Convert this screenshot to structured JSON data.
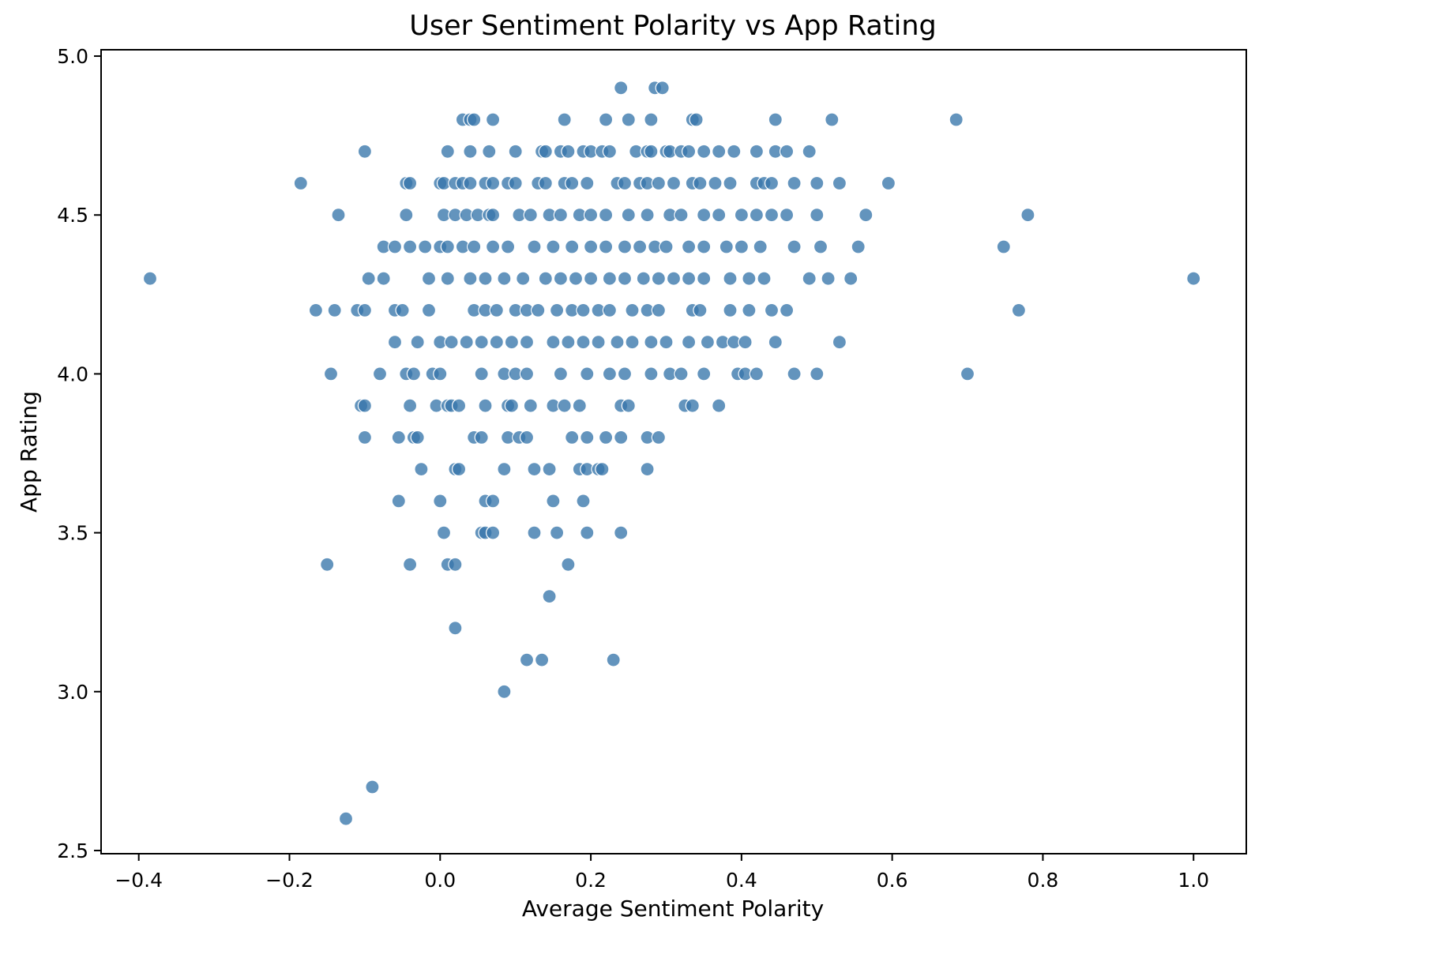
{
  "chart_data": {
    "type": "scatter",
    "title": "User Sentiment Polarity vs App Rating",
    "xlabel": "Average Sentiment Polarity",
    "ylabel": "App Rating",
    "xlim": [
      -0.45,
      1.07
    ],
    "ylim": [
      2.49,
      5.02
    ],
    "xticks": [
      -0.4,
      -0.2,
      0.0,
      0.2,
      0.4,
      0.6,
      0.8,
      1.0
    ],
    "xtick_labels": [
      "−0.4",
      "−0.2",
      "0.0",
      "0.2",
      "0.4",
      "0.6",
      "0.8",
      "1.0"
    ],
    "yticks": [
      2.5,
      3.0,
      3.5,
      4.0,
      4.5,
      5.0
    ],
    "ytick_labels": [
      "2.5",
      "3.0",
      "3.5",
      "4.0",
      "4.5",
      "5.0"
    ],
    "grid": false,
    "legend": "none",
    "colors": {
      "point": "#3776ab",
      "point_edge": "#ffffff",
      "axis": "#000000"
    },
    "points": [
      [
        0.24,
        4.9
      ],
      [
        0.285,
        4.9
      ],
      [
        0.295,
        4.9
      ],
      [
        0.03,
        4.8
      ],
      [
        0.04,
        4.8
      ],
      [
        0.045,
        4.8
      ],
      [
        0.07,
        4.8
      ],
      [
        0.165,
        4.8
      ],
      [
        0.22,
        4.8
      ],
      [
        0.25,
        4.8
      ],
      [
        0.28,
        4.8
      ],
      [
        0.335,
        4.8
      ],
      [
        0.34,
        4.8
      ],
      [
        0.445,
        4.8
      ],
      [
        0.52,
        4.8
      ],
      [
        0.685,
        4.8
      ],
      [
        -0.1,
        4.7
      ],
      [
        0.01,
        4.7
      ],
      [
        0.04,
        4.7
      ],
      [
        0.065,
        4.7
      ],
      [
        0.1,
        4.7
      ],
      [
        0.135,
        4.7
      ],
      [
        0.14,
        4.7
      ],
      [
        0.16,
        4.7
      ],
      [
        0.17,
        4.7
      ],
      [
        0.19,
        4.7
      ],
      [
        0.2,
        4.7
      ],
      [
        0.215,
        4.7
      ],
      [
        0.225,
        4.7
      ],
      [
        0.26,
        4.7
      ],
      [
        0.275,
        4.7
      ],
      [
        0.28,
        4.7
      ],
      [
        0.3,
        4.7
      ],
      [
        0.305,
        4.7
      ],
      [
        0.32,
        4.7
      ],
      [
        0.33,
        4.7
      ],
      [
        0.35,
        4.7
      ],
      [
        0.37,
        4.7
      ],
      [
        0.39,
        4.7
      ],
      [
        0.42,
        4.7
      ],
      [
        0.445,
        4.7
      ],
      [
        0.46,
        4.7
      ],
      [
        0.49,
        4.7
      ],
      [
        -0.185,
        4.6
      ],
      [
        -0.045,
        4.6
      ],
      [
        -0.04,
        4.6
      ],
      [
        0.0,
        4.6
      ],
      [
        0.005,
        4.6
      ],
      [
        0.02,
        4.6
      ],
      [
        0.03,
        4.6
      ],
      [
        0.04,
        4.6
      ],
      [
        0.06,
        4.6
      ],
      [
        0.07,
        4.6
      ],
      [
        0.09,
        4.6
      ],
      [
        0.1,
        4.6
      ],
      [
        0.13,
        4.6
      ],
      [
        0.14,
        4.6
      ],
      [
        0.165,
        4.6
      ],
      [
        0.175,
        4.6
      ],
      [
        0.195,
        4.6
      ],
      [
        0.235,
        4.6
      ],
      [
        0.245,
        4.6
      ],
      [
        0.265,
        4.6
      ],
      [
        0.275,
        4.6
      ],
      [
        0.29,
        4.6
      ],
      [
        0.31,
        4.6
      ],
      [
        0.335,
        4.6
      ],
      [
        0.345,
        4.6
      ],
      [
        0.365,
        4.6
      ],
      [
        0.385,
        4.6
      ],
      [
        0.42,
        4.6
      ],
      [
        0.43,
        4.6
      ],
      [
        0.44,
        4.6
      ],
      [
        0.47,
        4.6
      ],
      [
        0.5,
        4.6
      ],
      [
        0.53,
        4.6
      ],
      [
        0.595,
        4.6
      ],
      [
        -0.135,
        4.5
      ],
      [
        -0.045,
        4.5
      ],
      [
        0.005,
        4.5
      ],
      [
        0.02,
        4.5
      ],
      [
        0.035,
        4.5
      ],
      [
        0.05,
        4.5
      ],
      [
        0.065,
        4.5
      ],
      [
        0.07,
        4.5
      ],
      [
        0.105,
        4.5
      ],
      [
        0.12,
        4.5
      ],
      [
        0.145,
        4.5
      ],
      [
        0.16,
        4.5
      ],
      [
        0.185,
        4.5
      ],
      [
        0.2,
        4.5
      ],
      [
        0.22,
        4.5
      ],
      [
        0.25,
        4.5
      ],
      [
        0.275,
        4.5
      ],
      [
        0.305,
        4.5
      ],
      [
        0.32,
        4.5
      ],
      [
        0.35,
        4.5
      ],
      [
        0.37,
        4.5
      ],
      [
        0.4,
        4.5
      ],
      [
        0.42,
        4.5
      ],
      [
        0.44,
        4.5
      ],
      [
        0.46,
        4.5
      ],
      [
        0.5,
        4.5
      ],
      [
        0.565,
        4.5
      ],
      [
        0.78,
        4.5
      ],
      [
        -0.075,
        4.4
      ],
      [
        -0.06,
        4.4
      ],
      [
        -0.04,
        4.4
      ],
      [
        -0.02,
        4.4
      ],
      [
        0.0,
        4.4
      ],
      [
        0.01,
        4.4
      ],
      [
        0.03,
        4.4
      ],
      [
        0.045,
        4.4
      ],
      [
        0.07,
        4.4
      ],
      [
        0.09,
        4.4
      ],
      [
        0.125,
        4.4
      ],
      [
        0.15,
        4.4
      ],
      [
        0.175,
        4.4
      ],
      [
        0.2,
        4.4
      ],
      [
        0.22,
        4.4
      ],
      [
        0.245,
        4.4
      ],
      [
        0.265,
        4.4
      ],
      [
        0.285,
        4.4
      ],
      [
        0.3,
        4.4
      ],
      [
        0.33,
        4.4
      ],
      [
        0.35,
        4.4
      ],
      [
        0.38,
        4.4
      ],
      [
        0.4,
        4.4
      ],
      [
        0.425,
        4.4
      ],
      [
        0.47,
        4.4
      ],
      [
        0.505,
        4.4
      ],
      [
        0.555,
        4.4
      ],
      [
        0.748,
        4.4
      ],
      [
        -0.385,
        4.3
      ],
      [
        -0.095,
        4.3
      ],
      [
        -0.075,
        4.3
      ],
      [
        -0.015,
        4.3
      ],
      [
        0.01,
        4.3
      ],
      [
        0.04,
        4.3
      ],
      [
        0.06,
        4.3
      ],
      [
        0.085,
        4.3
      ],
      [
        0.11,
        4.3
      ],
      [
        0.14,
        4.3
      ],
      [
        0.16,
        4.3
      ],
      [
        0.18,
        4.3
      ],
      [
        0.2,
        4.3
      ],
      [
        0.225,
        4.3
      ],
      [
        0.245,
        4.3
      ],
      [
        0.27,
        4.3
      ],
      [
        0.29,
        4.3
      ],
      [
        0.31,
        4.3
      ],
      [
        0.33,
        4.3
      ],
      [
        0.35,
        4.3
      ],
      [
        0.385,
        4.3
      ],
      [
        0.41,
        4.3
      ],
      [
        0.43,
        4.3
      ],
      [
        0.49,
        4.3
      ],
      [
        0.515,
        4.3
      ],
      [
        0.545,
        4.3
      ],
      [
        1.0,
        4.3
      ],
      [
        -0.165,
        4.2
      ],
      [
        -0.14,
        4.2
      ],
      [
        -0.11,
        4.2
      ],
      [
        -0.1,
        4.2
      ],
      [
        -0.06,
        4.2
      ],
      [
        -0.05,
        4.2
      ],
      [
        -0.015,
        4.2
      ],
      [
        0.045,
        4.2
      ],
      [
        0.06,
        4.2
      ],
      [
        0.075,
        4.2
      ],
      [
        0.1,
        4.2
      ],
      [
        0.115,
        4.2
      ],
      [
        0.13,
        4.2
      ],
      [
        0.155,
        4.2
      ],
      [
        0.175,
        4.2
      ],
      [
        0.19,
        4.2
      ],
      [
        0.21,
        4.2
      ],
      [
        0.225,
        4.2
      ],
      [
        0.255,
        4.2
      ],
      [
        0.275,
        4.2
      ],
      [
        0.29,
        4.2
      ],
      [
        0.335,
        4.2
      ],
      [
        0.345,
        4.2
      ],
      [
        0.385,
        4.2
      ],
      [
        0.41,
        4.2
      ],
      [
        0.44,
        4.2
      ],
      [
        0.46,
        4.2
      ],
      [
        0.768,
        4.2
      ],
      [
        -0.06,
        4.1
      ],
      [
        -0.03,
        4.1
      ],
      [
        0.0,
        4.1
      ],
      [
        0.015,
        4.1
      ],
      [
        0.035,
        4.1
      ],
      [
        0.055,
        4.1
      ],
      [
        0.075,
        4.1
      ],
      [
        0.095,
        4.1
      ],
      [
        0.115,
        4.1
      ],
      [
        0.15,
        4.1
      ],
      [
        0.17,
        4.1
      ],
      [
        0.19,
        4.1
      ],
      [
        0.21,
        4.1
      ],
      [
        0.235,
        4.1
      ],
      [
        0.255,
        4.1
      ],
      [
        0.28,
        4.1
      ],
      [
        0.3,
        4.1
      ],
      [
        0.33,
        4.1
      ],
      [
        0.355,
        4.1
      ],
      [
        0.375,
        4.1
      ],
      [
        0.39,
        4.1
      ],
      [
        0.405,
        4.1
      ],
      [
        0.445,
        4.1
      ],
      [
        0.53,
        4.1
      ],
      [
        -0.145,
        4.0
      ],
      [
        -0.08,
        4.0
      ],
      [
        -0.045,
        4.0
      ],
      [
        -0.035,
        4.0
      ],
      [
        -0.01,
        4.0
      ],
      [
        0.0,
        4.0
      ],
      [
        0.055,
        4.0
      ],
      [
        0.085,
        4.0
      ],
      [
        0.1,
        4.0
      ],
      [
        0.115,
        4.0
      ],
      [
        0.16,
        4.0
      ],
      [
        0.195,
        4.0
      ],
      [
        0.225,
        4.0
      ],
      [
        0.245,
        4.0
      ],
      [
        0.28,
        4.0
      ],
      [
        0.305,
        4.0
      ],
      [
        0.32,
        4.0
      ],
      [
        0.35,
        4.0
      ],
      [
        0.395,
        4.0
      ],
      [
        0.405,
        4.0
      ],
      [
        0.42,
        4.0
      ],
      [
        0.47,
        4.0
      ],
      [
        0.5,
        4.0
      ],
      [
        0.7,
        4.0
      ],
      [
        -0.105,
        3.9
      ],
      [
        -0.1,
        3.9
      ],
      [
        -0.04,
        3.9
      ],
      [
        -0.005,
        3.9
      ],
      [
        0.01,
        3.9
      ],
      [
        0.015,
        3.9
      ],
      [
        0.025,
        3.9
      ],
      [
        0.06,
        3.9
      ],
      [
        0.09,
        3.9
      ],
      [
        0.095,
        3.9
      ],
      [
        0.12,
        3.9
      ],
      [
        0.15,
        3.9
      ],
      [
        0.165,
        3.9
      ],
      [
        0.185,
        3.9
      ],
      [
        0.24,
        3.9
      ],
      [
        0.25,
        3.9
      ],
      [
        0.325,
        3.9
      ],
      [
        0.335,
        3.9
      ],
      [
        0.37,
        3.9
      ],
      [
        -0.1,
        3.8
      ],
      [
        -0.055,
        3.8
      ],
      [
        -0.035,
        3.8
      ],
      [
        -0.03,
        3.8
      ],
      [
        0.045,
        3.8
      ],
      [
        0.055,
        3.8
      ],
      [
        0.09,
        3.8
      ],
      [
        0.105,
        3.8
      ],
      [
        0.115,
        3.8
      ],
      [
        0.175,
        3.8
      ],
      [
        0.195,
        3.8
      ],
      [
        0.22,
        3.8
      ],
      [
        0.24,
        3.8
      ],
      [
        0.275,
        3.8
      ],
      [
        0.29,
        3.8
      ],
      [
        -0.025,
        3.7
      ],
      [
        0.02,
        3.7
      ],
      [
        0.025,
        3.7
      ],
      [
        0.085,
        3.7
      ],
      [
        0.125,
        3.7
      ],
      [
        0.145,
        3.7
      ],
      [
        0.185,
        3.7
      ],
      [
        0.195,
        3.7
      ],
      [
        0.21,
        3.7
      ],
      [
        0.215,
        3.7
      ],
      [
        0.275,
        3.7
      ],
      [
        -0.055,
        3.6
      ],
      [
        0.0,
        3.6
      ],
      [
        0.06,
        3.6
      ],
      [
        0.07,
        3.6
      ],
      [
        0.15,
        3.6
      ],
      [
        0.19,
        3.6
      ],
      [
        0.005,
        3.5
      ],
      [
        0.055,
        3.5
      ],
      [
        0.06,
        3.5
      ],
      [
        0.07,
        3.5
      ],
      [
        0.125,
        3.5
      ],
      [
        0.155,
        3.5
      ],
      [
        0.195,
        3.5
      ],
      [
        0.24,
        3.5
      ],
      [
        -0.15,
        3.4
      ],
      [
        -0.04,
        3.4
      ],
      [
        0.01,
        3.4
      ],
      [
        0.02,
        3.4
      ],
      [
        0.17,
        3.4
      ],
      [
        0.145,
        3.3
      ],
      [
        0.02,
        3.2
      ],
      [
        0.115,
        3.1
      ],
      [
        0.135,
        3.1
      ],
      [
        0.23,
        3.1
      ],
      [
        0.085,
        3.0
      ],
      [
        -0.09,
        2.7
      ],
      [
        -0.125,
        2.6
      ]
    ]
  }
}
